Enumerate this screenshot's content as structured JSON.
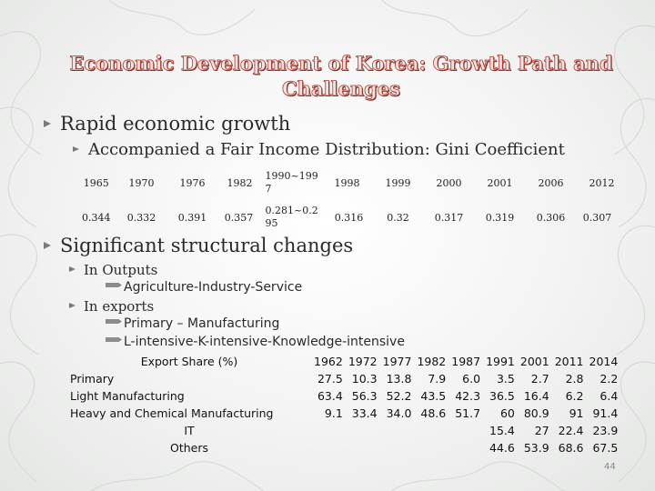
{
  "slide": {
    "title": "Economic Development of Korea: Growth Path and Challenges",
    "bullets": {
      "b1": "Rapid economic growth",
      "b1_sub": "Accompanied a Fair Income Distribution: Gini Coefficient",
      "b2": "Significant structural changes",
      "b2_sub1": "In Outputs",
      "b2_sub1_detail": "Agriculture-Industry-Service",
      "b2_sub2": "In exports",
      "b2_sub2_detail1": "Primary – Manufacturing",
      "b2_sub2_detail2": "L-intensive-K-intensive-Knowledge-intensive"
    },
    "page_number": "44"
  },
  "gini": {
    "years": [
      "1965",
      "1970",
      "1976",
      "1982",
      "1990~1997",
      "1998",
      "1999",
      "2000",
      "2001",
      "2006",
      "2012"
    ],
    "values": [
      "0.344",
      "0.332",
      "0.391",
      "0.357",
      "0.281~0.295",
      "0.316",
      "0.32",
      "0.317",
      "0.319",
      "0.306",
      "0.307"
    ]
  },
  "export_share": {
    "header_label": "Export Share (%)",
    "years": [
      "1962",
      "1972",
      "1977",
      "1982",
      "1987",
      "1991",
      "2001",
      "2011",
      "2014"
    ],
    "rows": [
      {
        "label": "Primary",
        "values": [
          "27.5",
          "10.3",
          "13.8",
          "7.9",
          "6.0",
          "3.5",
          "2.7",
          "2.8",
          "2.2"
        ]
      },
      {
        "label": "Light Manufacturing",
        "values": [
          "63.4",
          "56.3",
          "52.2",
          "43.5",
          "42.3",
          "36.5",
          "16.4",
          "6.2",
          "6.4"
        ]
      },
      {
        "label": "Heavy and Chemical Manufacturing",
        "values": [
          "9.1",
          "33.4",
          "34.0",
          "48.6",
          "51.7",
          "60",
          "80.9",
          "91",
          "91.4"
        ]
      },
      {
        "label": "IT",
        "values": [
          "",
          "",
          "",
          "",
          "",
          "15.4",
          "27",
          "22.4",
          "23.9"
        ]
      },
      {
        "label": "Others",
        "values": [
          "",
          "",
          "",
          "",
          "",
          "44.6",
          "53.9",
          "68.6",
          "67.5"
        ]
      }
    ]
  }
}
